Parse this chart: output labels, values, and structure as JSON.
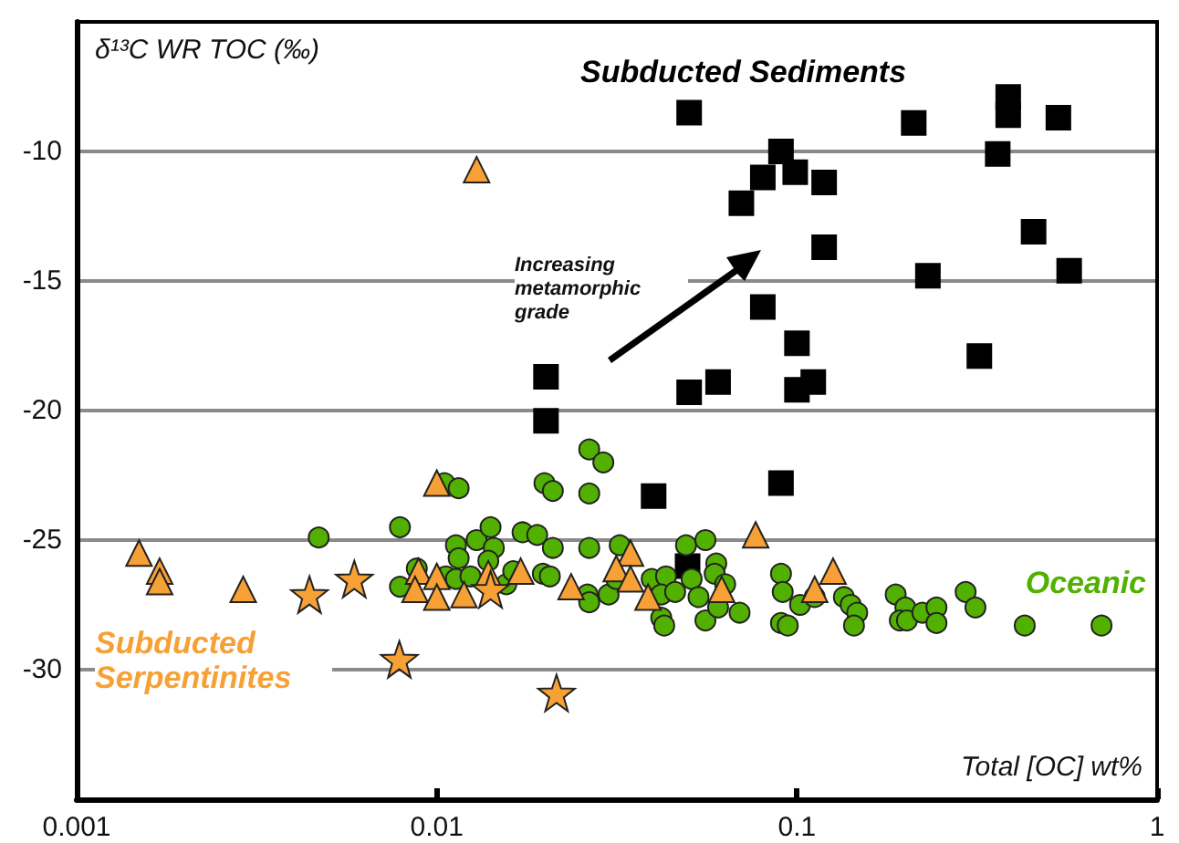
{
  "chart_data": {
    "type": "scatter",
    "xlabel": "Total [OC] wt%",
    "ylabel": "δ¹³C WR TOC (‰)",
    "annotations": [
      "Increasing metamorphic grade"
    ],
    "log": "x",
    "xlim": [
      0.001,
      1
    ],
    "xticks": [
      0.001,
      0.01,
      0.1,
      1
    ],
    "ylim": [
      -35,
      -5
    ],
    "yticks": [
      -30,
      -25,
      -20,
      -15,
      -10
    ],
    "grid": "y",
    "legend": false,
    "series": [
      {
        "name": "Subducted Sediments",
        "color": "#000000",
        "marker": "square",
        "x": [
          0.0201,
          0.0201,
          0.0502,
          0.0903,
          0.0804,
          0.0989,
          0.119,
          0.0701,
          0.119,
          0.0804,
          0.1,
          0.0502,
          0.0604,
          0.1,
          0.111,
          0.211,
          0.386,
          0.386,
          0.532,
          0.361,
          0.454,
          0.57,
          0.231,
          0.321,
          0.04,
          0.0903,
          0.0497
        ],
        "values": [
          -18.7,
          -20.4,
          -8.5,
          -10,
          -11,
          -10.8,
          -11.2,
          -12,
          -13.7,
          -16,
          -17.4,
          -19.3,
          -18.9,
          -19.2,
          -18.9,
          -8.9,
          -7.9,
          -8.6,
          -8.7,
          -10.1,
          -13.1,
          -14.6,
          -14.8,
          -17.9,
          -23.3,
          -22.8,
          -26
        ]
      },
      {
        "name": "Oceanic",
        "color": "#52b000",
        "marker": "circle",
        "x": [
          0.0047,
          0.0079,
          0.0079,
          0.0088,
          0.0105,
          0.0115,
          0.0106,
          0.0113,
          0.0115,
          0.0113,
          0.0129,
          0.0124,
          0.0141,
          0.0144,
          0.0139,
          0.0156,
          0.0163,
          0.0173,
          0.019,
          0.0197,
          0.0206,
          0.0199,
          0.021,
          0.021,
          0.0265,
          0.0265,
          0.0265,
          0.0262,
          0.0265,
          0.029,
          0.0322,
          0.0492,
          0.0557,
          0.03,
          0.0315,
          0.0395,
          0.0433,
          0.042,
          0.0459,
          0.042,
          0.0428,
          0.051,
          0.0533,
          0.0557,
          0.0597,
          0.0591,
          0.0632,
          0.0604,
          0.0693,
          0.0903,
          0.0913,
          0.0903,
          0.0943,
          0.102,
          0.112,
          0.135,
          0.141,
          0.147,
          0.144,
          0.188,
          0.2,
          0.193,
          0.202,
          0.223,
          0.244,
          0.244,
          0.294,
          0.313,
          0.429,
          0.701
        ],
        "values": [
          -24.9,
          -24.5,
          -26.8,
          -26.1,
          -22.8,
          -23,
          -26.4,
          -25.2,
          -25.7,
          -26.5,
          -25,
          -26.4,
          -24.5,
          -25.3,
          -25.8,
          -26.7,
          -26.2,
          -24.7,
          -24.8,
          -26.3,
          -26.4,
          -22.8,
          -23.1,
          -25.3,
          -21.5,
          -23.2,
          -25.3,
          -27.1,
          -27.4,
          -22,
          -25.2,
          -25.2,
          -25,
          -27.1,
          -26.5,
          -26.5,
          -26.4,
          -27.1,
          -27,
          -28,
          -28.3,
          -26.5,
          -27.2,
          -28.1,
          -25.9,
          -26.3,
          -26.7,
          -27.6,
          -27.8,
          -26.3,
          -27,
          -28.2,
          -28.3,
          -27.5,
          -27.2,
          -27.2,
          -27.5,
          -27.8,
          -28.3,
          -27.1,
          -27.6,
          -28.1,
          -28.1,
          -27.8,
          -27.6,
          -28.2,
          -27,
          -27.6,
          -28.3,
          -28.3
        ]
      },
      {
        "name": "Subducted Serpentinites",
        "color": "#f7a035",
        "marker": "triangle",
        "x": [
          0.0129,
          0.00149,
          0.0017,
          0.0017,
          0.0029,
          0.01,
          0.0089,
          0.0087,
          0.01,
          0.01,
          0.0119,
          0.0139,
          0.0171,
          0.0236,
          0.0345,
          0.0315,
          0.0345,
          0.0386,
          0.0618,
          0.0768,
          0.112,
          0.126
        ],
        "values": [
          -10.7,
          -25.5,
          -26.2,
          -26.6,
          -26.9,
          -22.8,
          -26.2,
          -26.9,
          -26.4,
          -27.2,
          -27.1,
          -26.3,
          -26.2,
          -26.8,
          -25.5,
          -26.1,
          -26.5,
          -27.2,
          -26.9,
          -24.8,
          -26.9,
          -26.2
        ]
      },
      {
        "color": "#f7a035",
        "marker": "star",
        "x": [
          0.00443,
          0.0059,
          0.00787,
          0.0141,
          0.0215
        ],
        "values": [
          -27.1,
          -26.5,
          -29.6,
          -26.9,
          -30.9
        ]
      }
    ]
  }
}
